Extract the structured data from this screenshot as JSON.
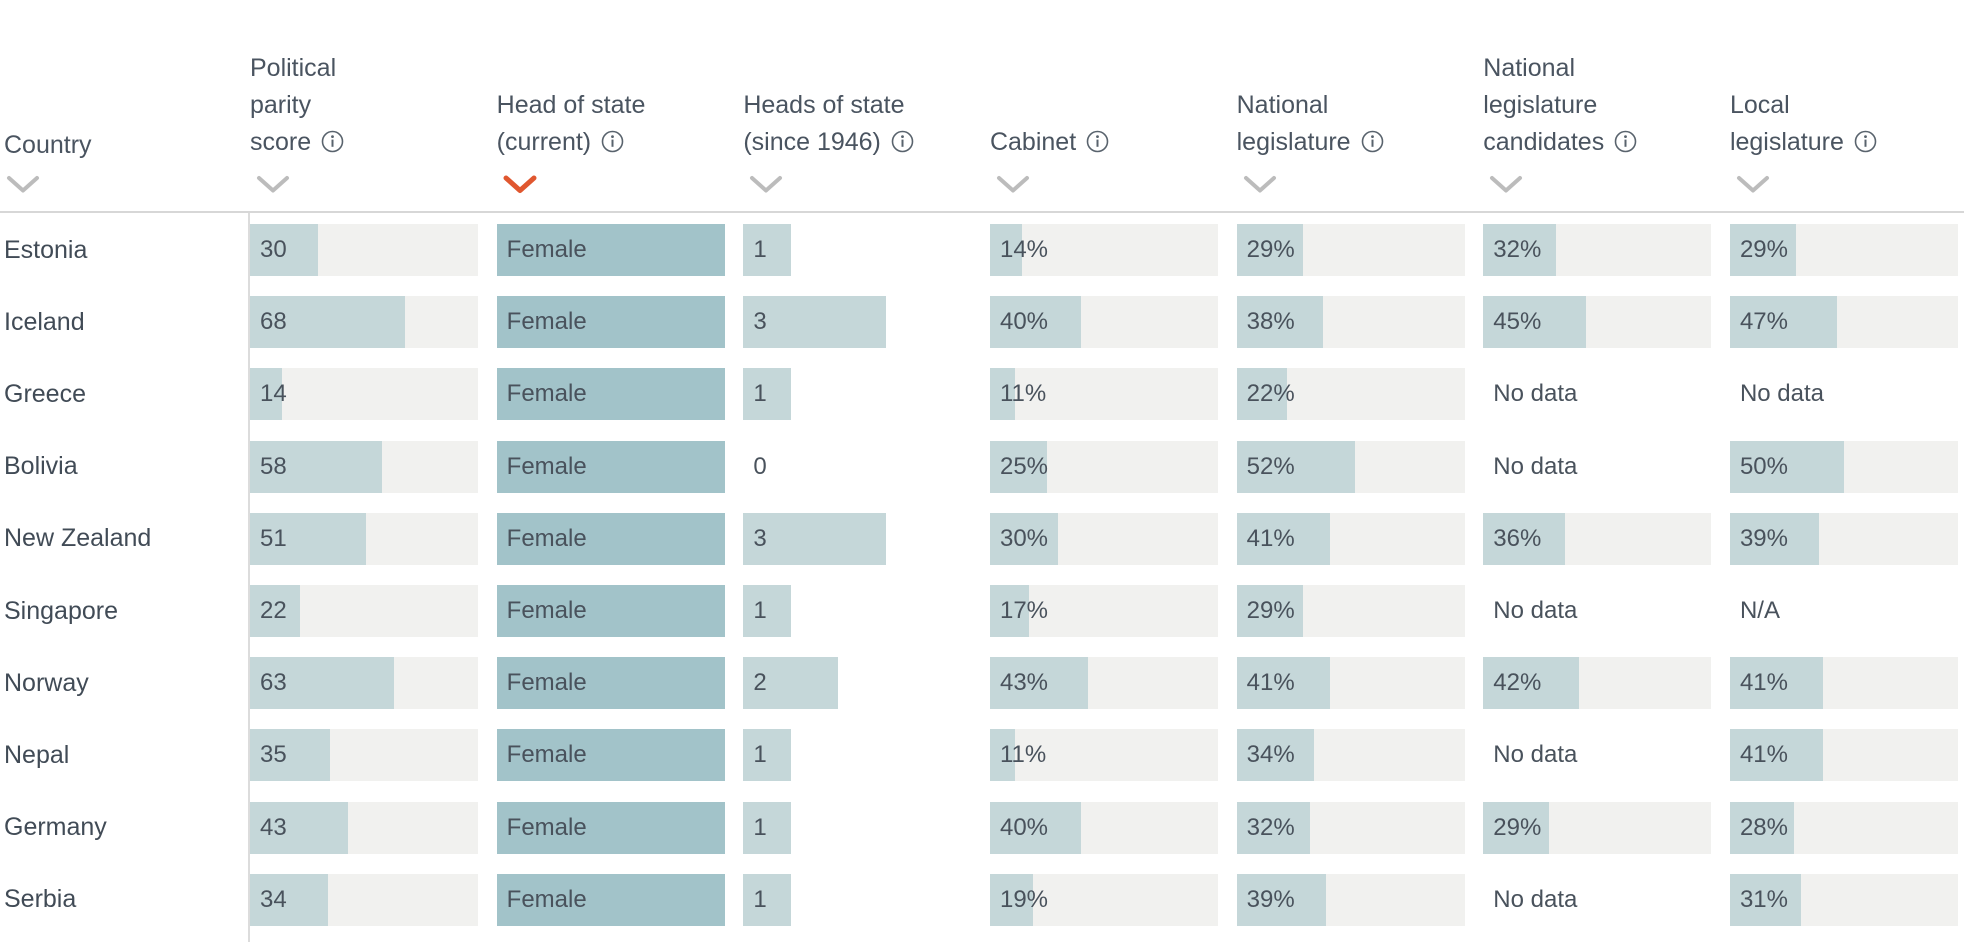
{
  "table": {
    "sort": {
      "active_column": "head-of-state-current",
      "direction": "desc"
    },
    "columns": [
      {
        "id": "country",
        "label_lines": [
          "Country"
        ],
        "info": false,
        "type": "label"
      },
      {
        "id": "political-parity-score",
        "label_lines": [
          "Political",
          "parity",
          "score"
        ],
        "info": true,
        "type": "score",
        "scale_max": 100
      },
      {
        "id": "head-of-state-current",
        "label_lines": [
          "Head of state",
          "(current)"
        ],
        "info": true,
        "type": "category"
      },
      {
        "id": "heads-of-state-since-1946",
        "label_lines": [
          "Heads of state",
          "(since 1946)"
        ],
        "info": true,
        "type": "count",
        "scale_max": 4.8
      },
      {
        "id": "cabinet",
        "label_lines": [
          "Cabinet"
        ],
        "info": true,
        "type": "percent"
      },
      {
        "id": "national-legislature",
        "label_lines": [
          "National",
          "legislature"
        ],
        "info": true,
        "type": "percent"
      },
      {
        "id": "national-legislature-candidates",
        "label_lines": [
          "National",
          "legislature",
          "candidates"
        ],
        "info": true,
        "type": "percent"
      },
      {
        "id": "local-legislature",
        "label_lines": [
          "Local",
          "legislature"
        ],
        "info": true,
        "type": "percent"
      }
    ],
    "rows": [
      {
        "country": "Estonia",
        "cells": [
          "30",
          "Female",
          "1",
          "14%",
          "29%",
          "32%",
          "29%"
        ]
      },
      {
        "country": "Iceland",
        "cells": [
          "68",
          "Female",
          "3",
          "40%",
          "38%",
          "45%",
          "47%"
        ]
      },
      {
        "country": "Greece",
        "cells": [
          "14",
          "Female",
          "1",
          "11%",
          "22%",
          "No data",
          "No data"
        ]
      },
      {
        "country": "Bolivia",
        "cells": [
          "58",
          "Female",
          "0",
          "25%",
          "52%",
          "No data",
          "50%"
        ]
      },
      {
        "country": "New Zealand",
        "cells": [
          "51",
          "Female",
          "3",
          "30%",
          "41%",
          "36%",
          "39%"
        ]
      },
      {
        "country": "Singapore",
        "cells": [
          "22",
          "Female",
          "1",
          "17%",
          "29%",
          "No data",
          "N/A"
        ]
      },
      {
        "country": "Norway",
        "cells": [
          "63",
          "Female",
          "2",
          "43%",
          "41%",
          "42%",
          "41%"
        ]
      },
      {
        "country": "Nepal",
        "cells": [
          "35",
          "Female",
          "1",
          "11%",
          "34%",
          "No data",
          "41%"
        ]
      },
      {
        "country": "Germany",
        "cells": [
          "43",
          "Female",
          "1",
          "40%",
          "32%",
          "29%",
          "28%"
        ]
      },
      {
        "country": "Serbia",
        "cells": [
          "34",
          "Female",
          "1",
          "19%",
          "39%",
          "No data",
          "31%"
        ]
      }
    ],
    "no_data_labels": [
      "No data",
      "N/A"
    ]
  },
  "colors": {
    "accent_sort": "#e0572f",
    "chevron_inactive": "#bcbcbc",
    "bar_fill": "#c5d7d9",
    "bar_fill_category": "#a2c3c9",
    "bar_track": "#f1f1ef",
    "header_text": "#4a5460",
    "cell_text": "#49525c",
    "hairline": "#d7d7d7",
    "v_line": "#dcdcdc",
    "info_icon": "#59636d"
  }
}
